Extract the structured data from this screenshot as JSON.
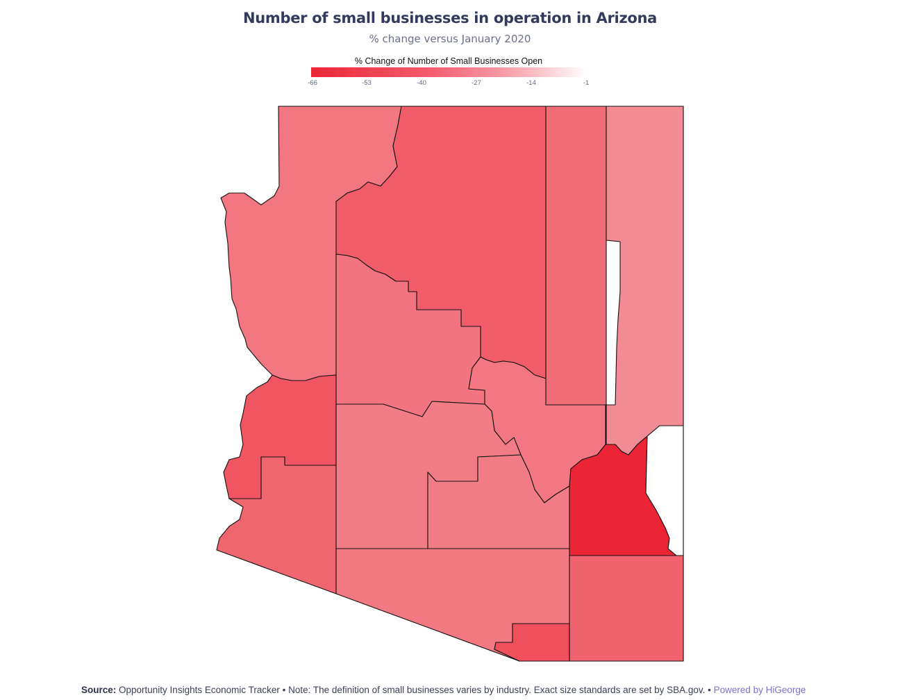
{
  "title": "Number of small businesses in operation in Arizona",
  "subtitle": "% change versus January 2020",
  "legend": {
    "title": "% Change of Number of Small Businesses Open",
    "ticks": [
      "-66",
      "-53",
      "-40",
      "-27",
      "-14",
      "-1"
    ],
    "colors": {
      "min": "#eb2535",
      "max": "#ffffff"
    }
  },
  "map": {
    "state": "Arizona",
    "colors": {
      "mohave": "#f37781",
      "coconino": "#f05c68",
      "navajo": "#f06d77",
      "apache": "#f38b94",
      "yavapai": "#f27480",
      "gila": "#f27782",
      "la_paz": "#f05662",
      "yuma": "#f0666f",
      "maricopa": "#f27c86",
      "pinal": "#f27c86",
      "graham": "#eb2535",
      "greenlee": "#ffffff",
      "pima": "#f27881",
      "santa_cruz": "#f04f5c",
      "cochise": "#f0626d"
    }
  },
  "footer": {
    "source_label": "Source:",
    "source_text": " Opportunity Insights Economic Tracker • Note: The definition of small businesses varies by industry. Exact size standards are set by SBA.gov. • ",
    "powered_by": "Powered by HiGeorge"
  }
}
